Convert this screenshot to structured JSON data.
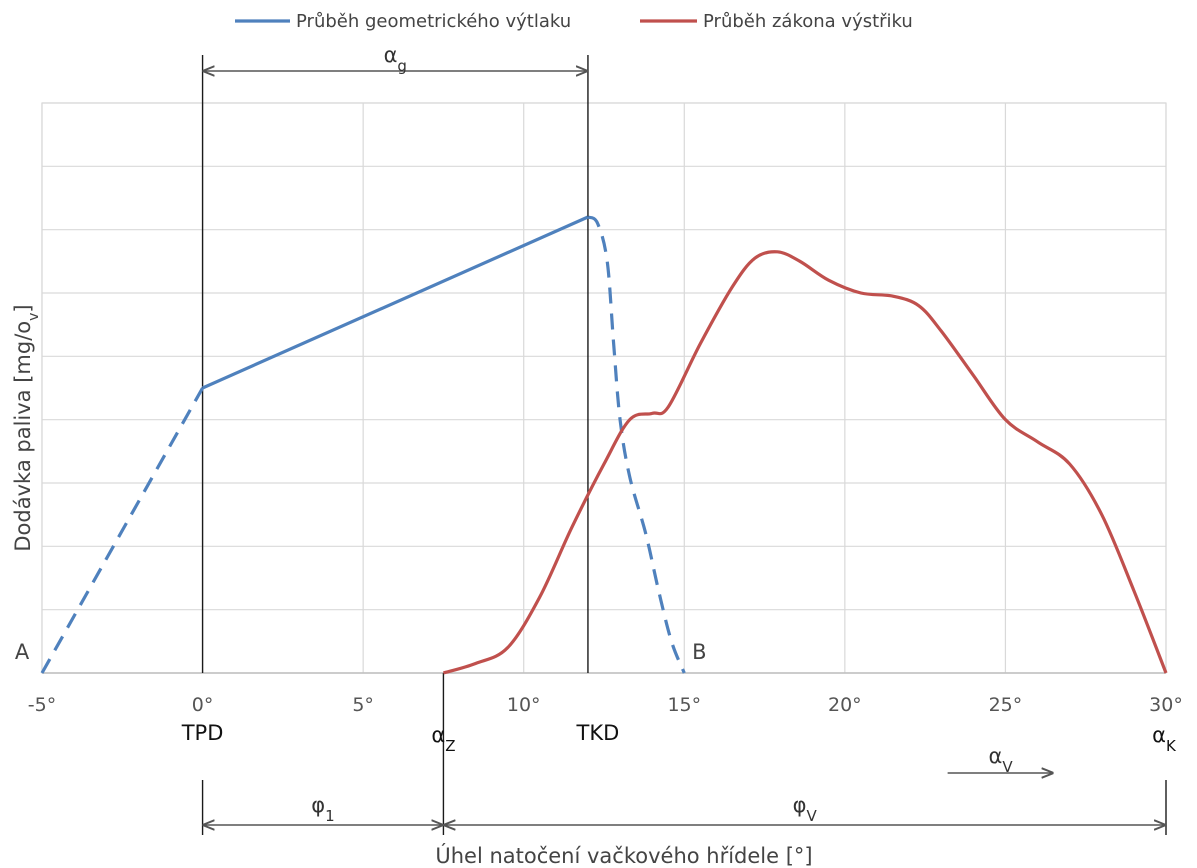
{
  "chart_data": {
    "type": "line",
    "xlabel": "Úhel natočení vačkového hřídele [°]",
    "ylabel": "Dodávka paliva [mg/o",
    "ylabel_sub": "v",
    "ylabel_tail": "]",
    "xlim": [
      -5,
      30
    ],
    "ylim": [
      0,
      9
    ],
    "grid": true,
    "legend_position": "top",
    "x_ticks": [
      -5,
      0,
      5,
      10,
      15,
      20,
      25,
      30
    ],
    "x_tick_labels": [
      "-5°",
      "0°",
      "5°",
      "10°",
      "15°",
      "20°",
      "25°",
      "30°"
    ],
    "series": [
      {
        "name": "Průběh geometrického výtlaku",
        "color": "#4f81bd",
        "solid": [
          [
            0,
            4.5
          ],
          [
            12,
            7.2
          ]
        ],
        "dashed_rise": [
          [
            -5,
            0
          ],
          [
            0,
            4.5
          ]
        ],
        "dashed_fall": [
          [
            12,
            7.2
          ],
          [
            12.3,
            7.1
          ],
          [
            12.6,
            6.5
          ],
          [
            12.8,
            5.2
          ],
          [
            13.0,
            4.0
          ],
          [
            13.3,
            3.1
          ],
          [
            13.8,
            2.2
          ],
          [
            14.2,
            1.3
          ],
          [
            14.6,
            0.5
          ],
          [
            15,
            0
          ]
        ]
      },
      {
        "name": "Průběh zákona výstřiku",
        "color": "#c0504d",
        "points": [
          [
            7.5,
            0
          ],
          [
            8.5,
            0.15
          ],
          [
            9.5,
            0.4
          ],
          [
            10.5,
            1.2
          ],
          [
            11.5,
            2.3
          ],
          [
            12.5,
            3.3
          ],
          [
            13.3,
            4.0
          ],
          [
            14.0,
            4.1
          ],
          [
            14.5,
            4.2
          ],
          [
            15.5,
            5.2
          ],
          [
            16.5,
            6.1
          ],
          [
            17.2,
            6.55
          ],
          [
            17.9,
            6.65
          ],
          [
            18.6,
            6.5
          ],
          [
            19.5,
            6.2
          ],
          [
            20.5,
            6.0
          ],
          [
            21.5,
            5.95
          ],
          [
            22.3,
            5.8
          ],
          [
            23.0,
            5.4
          ],
          [
            24.0,
            4.7
          ],
          [
            25.0,
            4.0
          ],
          [
            26.0,
            3.65
          ],
          [
            27.0,
            3.3
          ],
          [
            28.0,
            2.5
          ],
          [
            29.0,
            1.3
          ],
          [
            30,
            0
          ]
        ]
      }
    ],
    "point_labels": [
      {
        "text": "A",
        "x": -5,
        "y": 0
      },
      {
        "text": "B",
        "x": 15,
        "y": 0
      }
    ],
    "markers": {
      "tpd": {
        "x": 0,
        "label": "TPD"
      },
      "tkd": {
        "x": 12,
        "label": "TKD"
      },
      "alpha_z": {
        "x": 7.5,
        "label": "α",
        "sub": "Z"
      },
      "alpha_k": {
        "x": 30,
        "label": "α",
        "sub": "K"
      }
    },
    "dimensions": {
      "alpha_g": {
        "from": 0,
        "to": 12,
        "label": "α",
        "sub": "g"
      },
      "phi_1": {
        "from": 0,
        "to": 7.5,
        "label": "φ",
        "sub": "1"
      },
      "phi_v": {
        "from": 7.5,
        "to": 30,
        "label": "φ",
        "sub": "V"
      },
      "alpha_v": {
        "from": 23.2,
        "to": 26.5,
        "label": "α",
        "sub": "V"
      }
    }
  }
}
